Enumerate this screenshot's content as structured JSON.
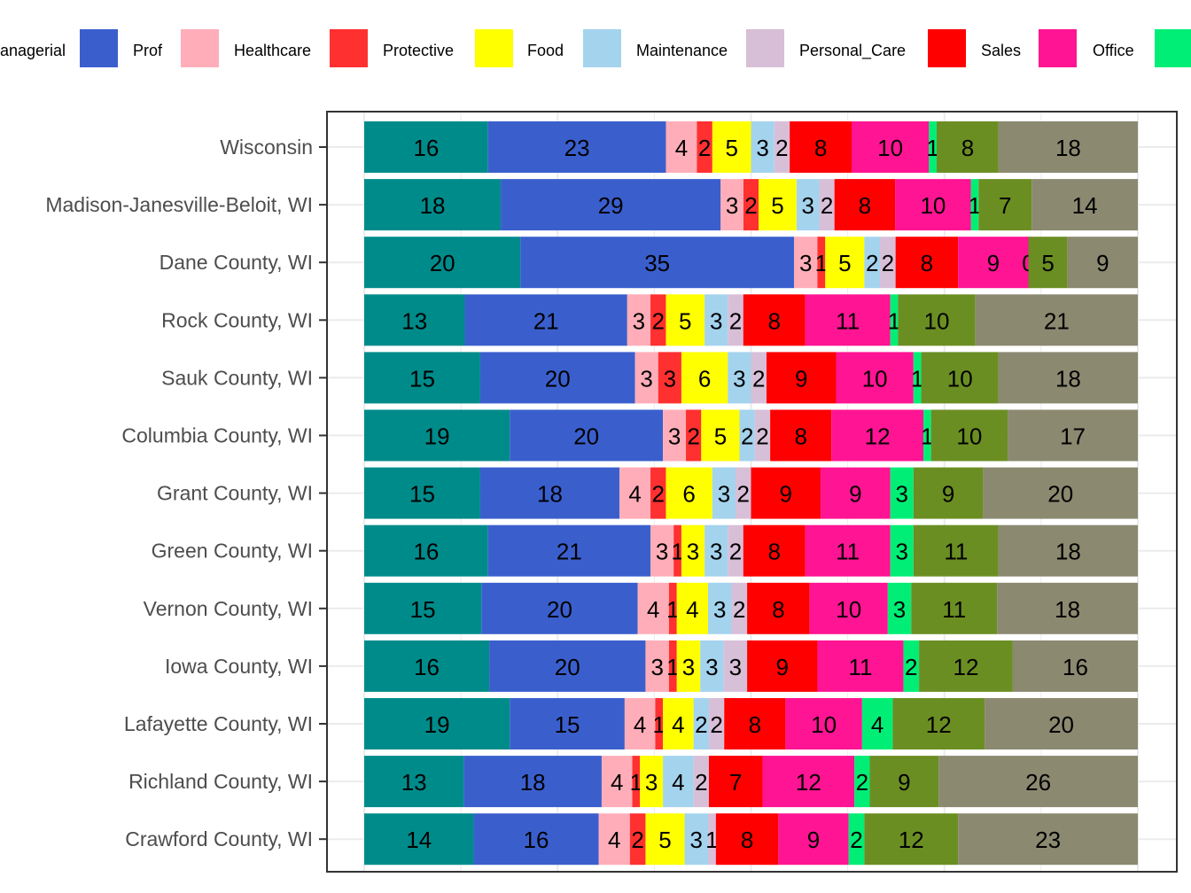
{
  "chart_data": {
    "type": "bar",
    "orientation": "horizontal",
    "stacked": true,
    "grid": true,
    "legend_position": "top",
    "categories": [
      "Wisconsin",
      "Madison-Janesville-Beloit, WI",
      "Dane County, WI",
      "Rock County, WI",
      "Sauk County, WI",
      "Columbia County, WI",
      "Grant County, WI",
      "Green County, WI",
      "Vernon County, WI",
      "Iowa County, WI",
      "Lafayette County, WI",
      "Richland County, WI",
      "Crawford County, WI"
    ],
    "series": [
      {
        "name": "Managerial",
        "color": "#008B8B",
        "values": [
          16,
          18,
          20,
          13,
          15,
          19,
          15,
          16,
          15,
          16,
          19,
          13,
          14
        ]
      },
      {
        "name": "Prof",
        "color": "#3A5FCD",
        "values": [
          23,
          29,
          35,
          21,
          20,
          20,
          18,
          21,
          20,
          20,
          15,
          18,
          16
        ]
      },
      {
        "name": "Healthcare",
        "color": "#FFAEB9",
        "values": [
          4,
          3,
          3,
          3,
          3,
          3,
          4,
          3,
          4,
          3,
          4,
          4,
          4
        ]
      },
      {
        "name": "Protective",
        "color": "#FF3030",
        "values": [
          2,
          2,
          1,
          2,
          3,
          2,
          2,
          1,
          1,
          1,
          1,
          1,
          2
        ]
      },
      {
        "name": "Food",
        "color": "#FFFF00",
        "values": [
          5,
          5,
          5,
          5,
          6,
          5,
          6,
          3,
          4,
          3,
          4,
          3,
          5
        ]
      },
      {
        "name": "Maintenance",
        "color": "#A4D3EE",
        "values": [
          3,
          3,
          2,
          3,
          3,
          2,
          3,
          3,
          3,
          3,
          2,
          4,
          3
        ]
      },
      {
        "name": "Personal_Care",
        "color": "#D8BFD8",
        "values": [
          2,
          2,
          2,
          2,
          2,
          2,
          2,
          2,
          2,
          3,
          2,
          2,
          1
        ]
      },
      {
        "name": "Sales",
        "color": "#FF0000",
        "values": [
          8,
          8,
          8,
          8,
          9,
          8,
          9,
          8,
          8,
          9,
          8,
          7,
          8
        ]
      },
      {
        "name": "Office",
        "color": "#FF1493",
        "values": [
          10,
          10,
          9,
          11,
          10,
          12,
          9,
          11,
          10,
          11,
          10,
          12,
          9
        ]
      },
      {
        "color": "#00EE76",
        "values": [
          1,
          1,
          0,
          1,
          1,
          1,
          3,
          3,
          3,
          2,
          4,
          2,
          2
        ]
      },
      {
        "color": "#6B8E23",
        "values": [
          8,
          7,
          5,
          10,
          10,
          10,
          9,
          11,
          11,
          12,
          12,
          9,
          12
        ]
      },
      {
        "color": "#8B8970",
        "values": [
          18,
          14,
          9,
          21,
          18,
          17,
          20,
          18,
          18,
          16,
          20,
          26,
          23
        ]
      }
    ]
  }
}
